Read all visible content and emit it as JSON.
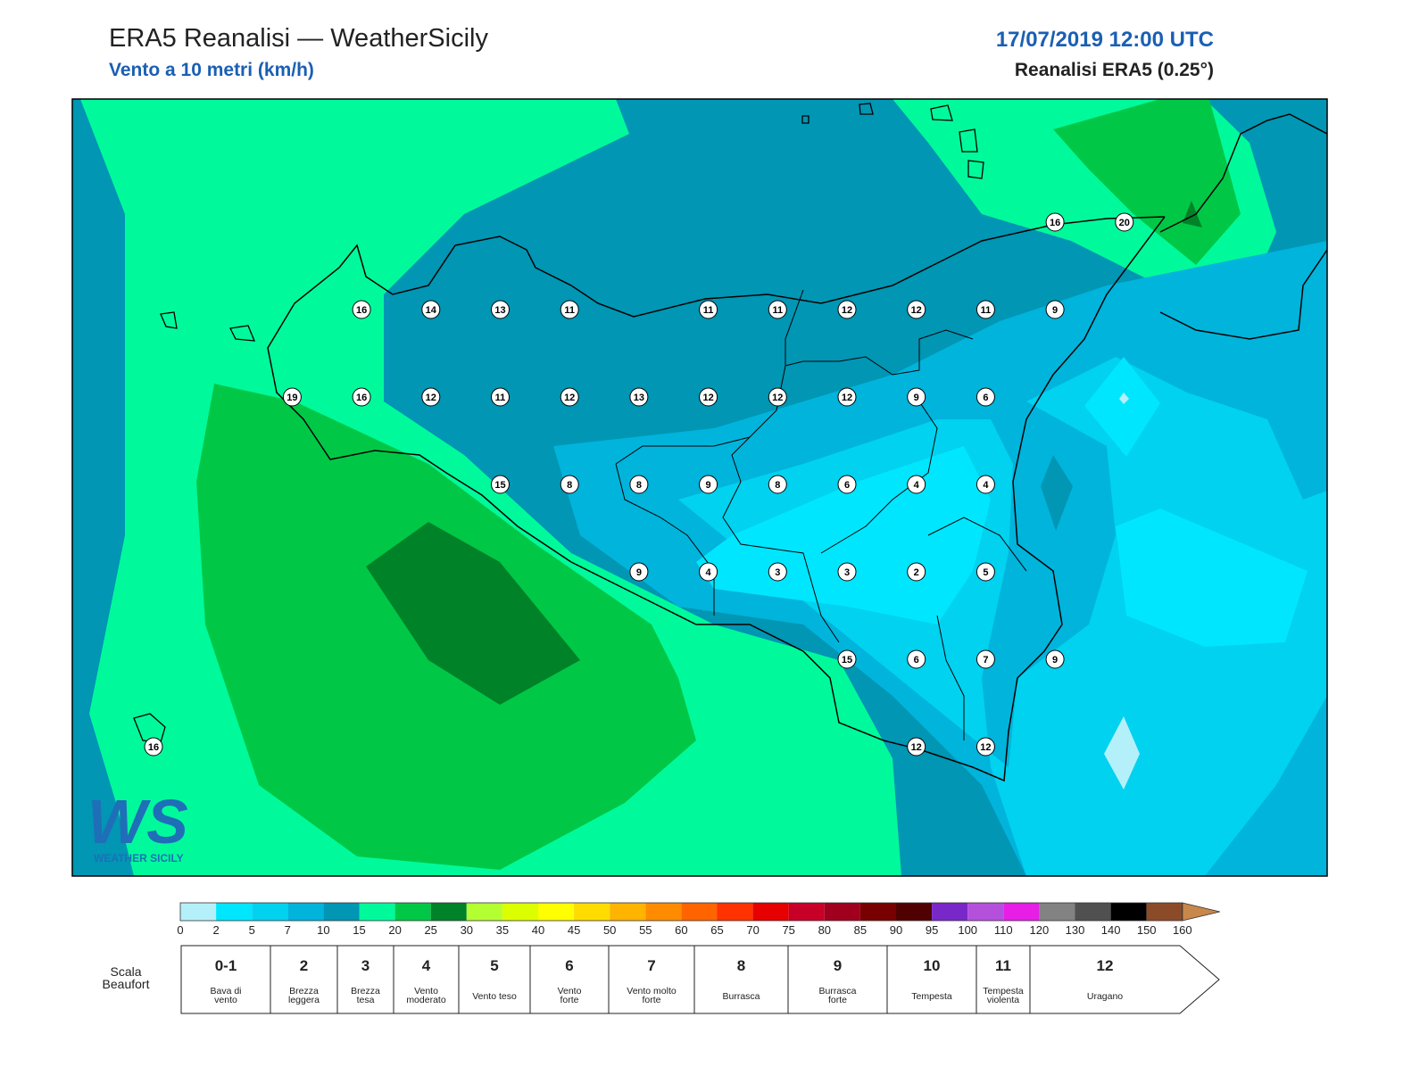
{
  "header": {
    "title": "ERA5 Reanalisi — WeatherSicily",
    "subtitle": "Vento a 10 metri (km/h)",
    "date": "17/07/2019 12:00 UTC",
    "source": "Reanalisi ERA5 (0.25°)"
  },
  "map": {
    "stations": [
      16,
      20,
      16,
      14,
      13,
      11,
      11,
      11,
      12,
      12,
      11,
      9,
      19,
      16,
      12,
      11,
      12,
      13,
      12,
      12,
      12,
      9,
      6,
      15,
      8,
      8,
      9,
      8,
      6,
      4,
      4,
      9,
      4,
      3,
      3,
      2,
      5,
      15,
      6,
      7,
      9,
      12,
      12,
      16
    ]
  },
  "logo": {
    "mark": "WS",
    "text": "WEATHER SICILY"
  },
  "colorbar": {
    "ticks": [
      0,
      2,
      5,
      7,
      10,
      15,
      20,
      25,
      30,
      35,
      40,
      45,
      50,
      55,
      60,
      65,
      70,
      75,
      80,
      85,
      90,
      95,
      100,
      110,
      120,
      130,
      140,
      150,
      160
    ],
    "colors": [
      "#b4f0fa",
      "#00e6ff",
      "#00d2f0",
      "#00b4dc",
      "#0096b4",
      "#00fa9b",
      "#00c846",
      "#008228",
      "#b4ff32",
      "#dcff00",
      "#ffff00",
      "#ffdc00",
      "#ffb400",
      "#ff8c00",
      "#ff6400",
      "#ff3200",
      "#e60000",
      "#c80028",
      "#a0001e",
      "#780000",
      "#500000",
      "#7828c8",
      "#b450dc",
      "#e61ee6",
      "#828282",
      "#505050",
      "#000000",
      "#8c4b28",
      "#c8874b"
    ]
  },
  "beaufort": {
    "label": [
      "Scala",
      "Beaufort"
    ],
    "levels": [
      {
        "force": "0-1",
        "desc": [
          "Bava di",
          "vento"
        ]
      },
      {
        "force": 2,
        "desc": [
          "Brezza",
          "leggera"
        ]
      },
      {
        "force": 3,
        "desc": [
          "Brezza",
          "tesa"
        ]
      },
      {
        "force": 4,
        "desc": [
          "Vento",
          "moderato"
        ]
      },
      {
        "force": 5,
        "desc": [
          "Vento teso"
        ]
      },
      {
        "force": 6,
        "desc": [
          "Vento",
          "forte"
        ]
      },
      {
        "force": 7,
        "desc": [
          "Vento molto",
          "forte"
        ]
      },
      {
        "force": 8,
        "desc": [
          "Burrasca"
        ]
      },
      {
        "force": 9,
        "desc": [
          "Burrasca",
          "forte"
        ]
      },
      {
        "force": 10,
        "desc": [
          "Tempesta"
        ]
      },
      {
        "force": 11,
        "desc": [
          "Tempesta",
          "violenta"
        ]
      },
      {
        "force": 12,
        "desc": [
          "Uragano"
        ]
      }
    ]
  }
}
